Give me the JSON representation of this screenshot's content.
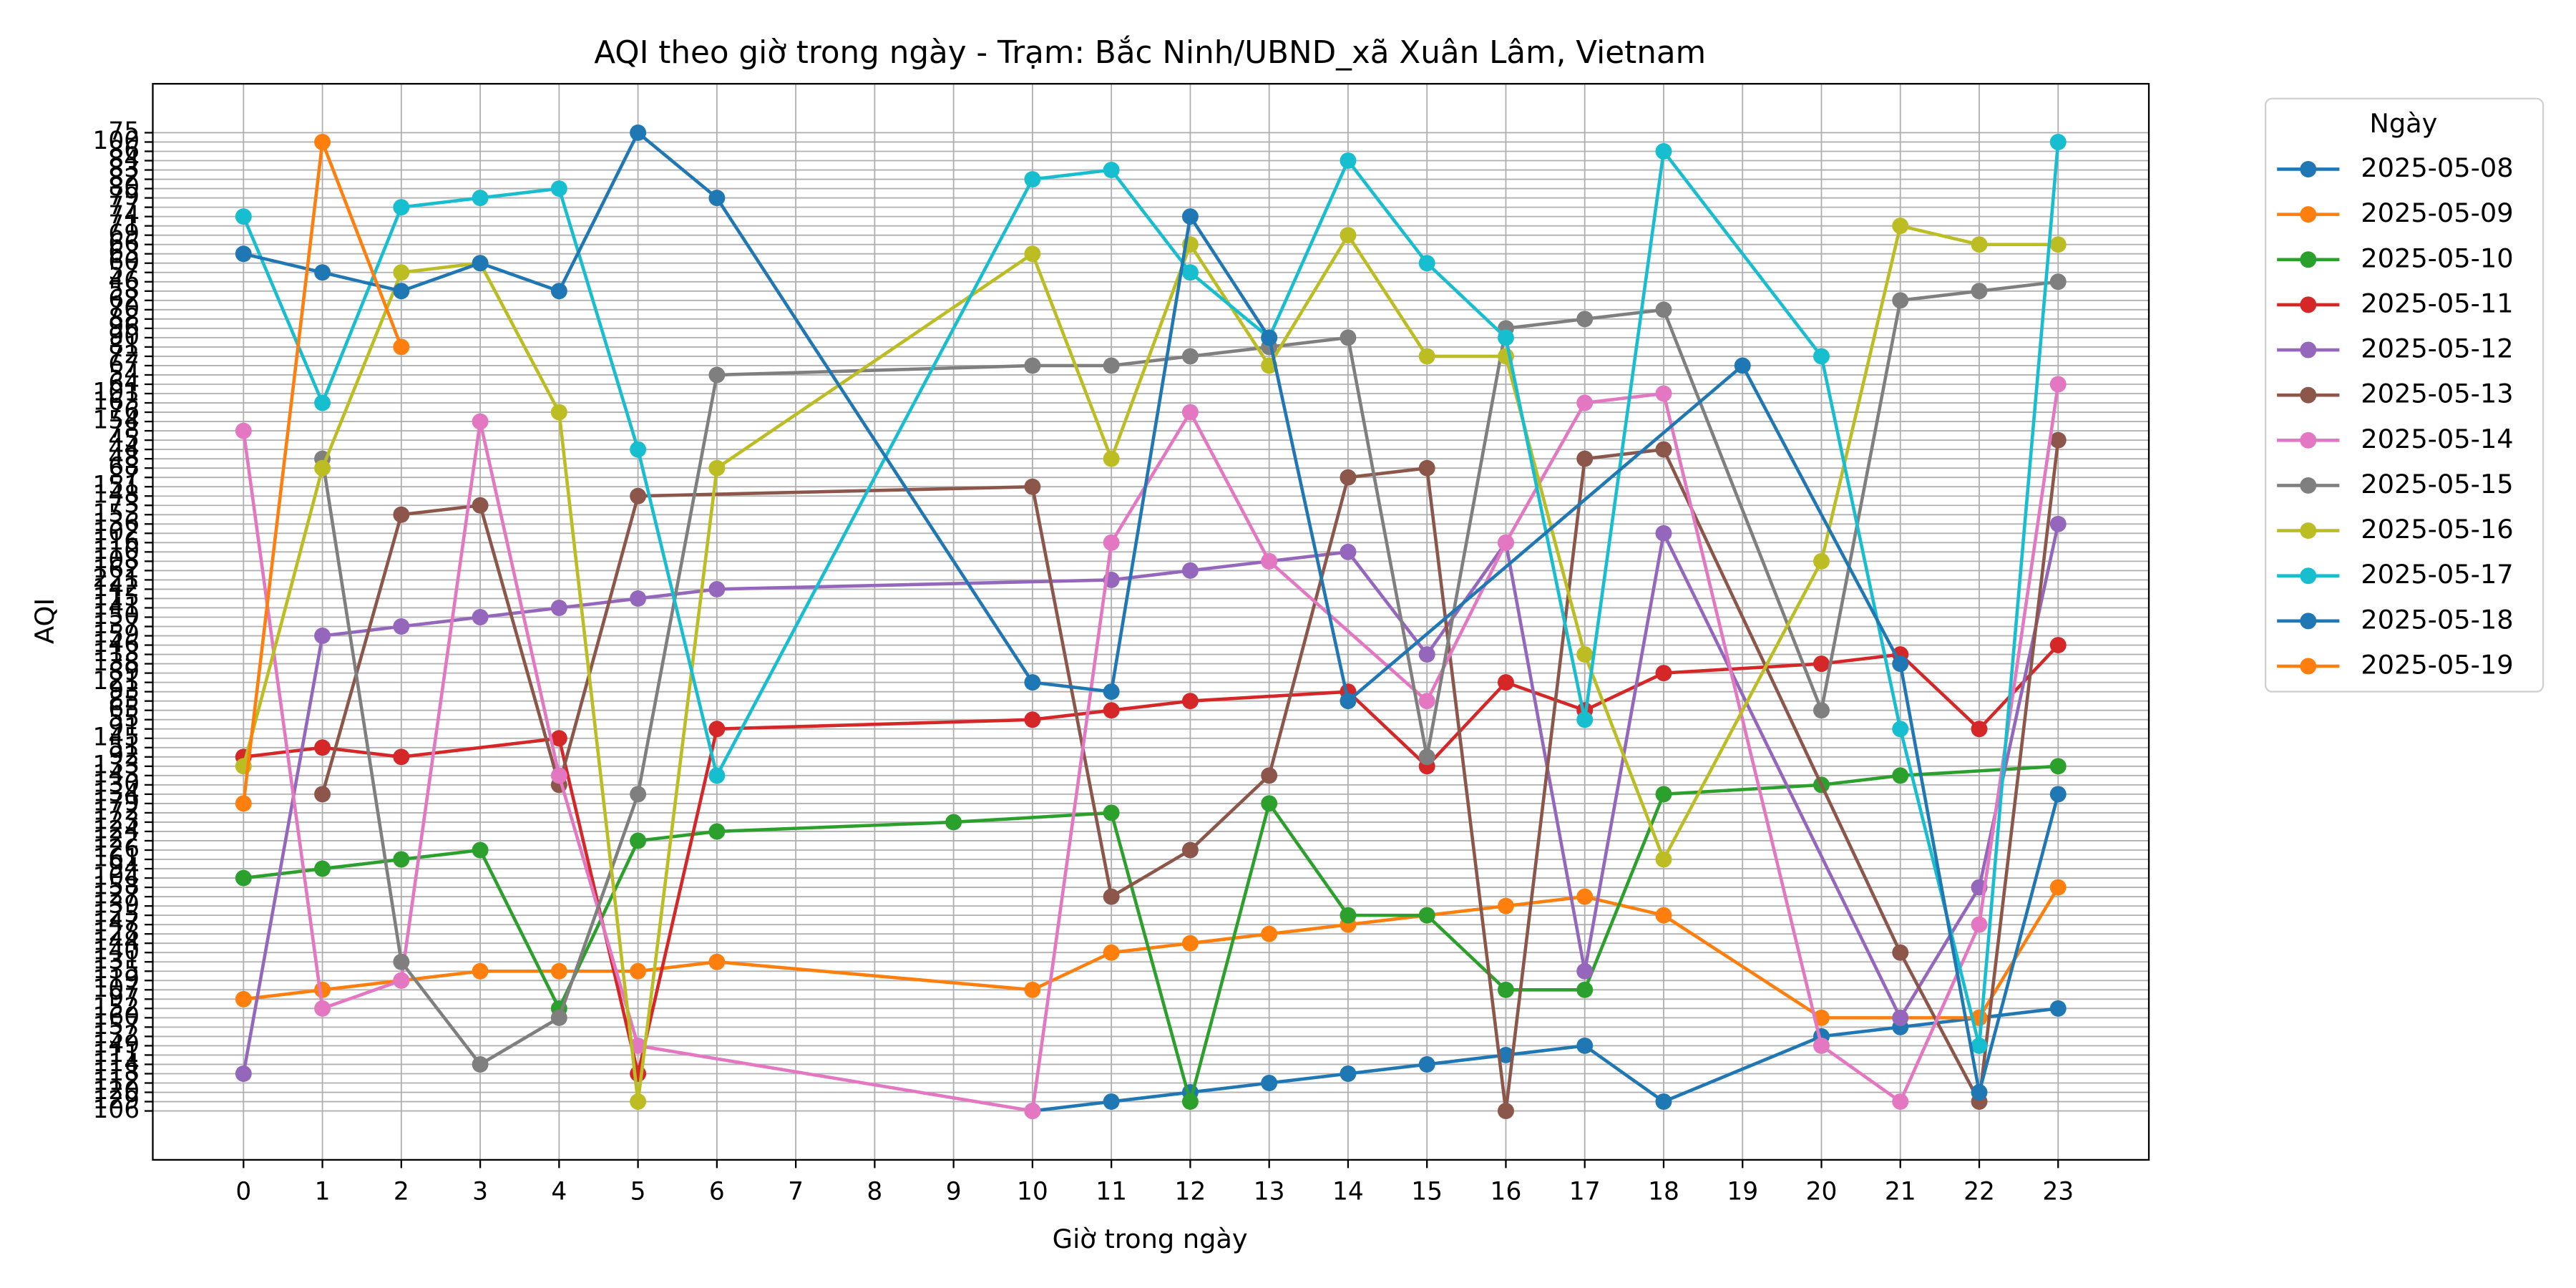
{
  "chart_data": {
    "type": "line",
    "title": "AQI theo giờ trong ngày - Trạm: Bắc Ninh/UBND_xã Xuân Lâm, Vietnam",
    "x_label": "Giờ trong ngày",
    "y_label": "AQI",
    "legend_title": "Ngày",
    "legend": "outside-upper-right",
    "grid": true,
    "xlim": [
      -1.15,
      24.15
    ],
    "xticks": [
      0,
      1,
      2,
      3,
      4,
      5,
      6,
      7,
      8,
      9,
      10,
      11,
      12,
      13,
      14,
      15,
      16,
      17,
      18,
      19,
      20,
      21,
      22,
      23
    ],
    "ylim": [
      -5.25,
      110.25
    ],
    "yticks": [
      {
        "value": 0,
        "label": "106"
      },
      {
        "value": 1,
        "label": "129"
      },
      {
        "value": 2,
        "label": "120"
      },
      {
        "value": 3,
        "label": "112"
      },
      {
        "value": 4,
        "label": "118"
      },
      {
        "value": 5,
        "label": "114"
      },
      {
        "value": 6,
        "label": "111"
      },
      {
        "value": 7,
        "label": "149"
      },
      {
        "value": 8,
        "label": "132"
      },
      {
        "value": 9,
        "label": "157"
      },
      {
        "value": 10,
        "label": "160"
      },
      {
        "value": 11,
        "label": "152"
      },
      {
        "value": 12,
        "label": "97"
      },
      {
        "value": 13,
        "label": "107"
      },
      {
        "value": 14,
        "label": "119"
      },
      {
        "value": 15,
        "label": "135"
      },
      {
        "value": 16,
        "label": "131"
      },
      {
        "value": 17,
        "label": "140"
      },
      {
        "value": 18,
        "label": "144"
      },
      {
        "value": 19,
        "label": "128"
      },
      {
        "value": 20,
        "label": "147"
      },
      {
        "value": 21,
        "label": "125"
      },
      {
        "value": 22,
        "label": "139"
      },
      {
        "value": 23,
        "label": "127"
      },
      {
        "value": 24,
        "label": "158"
      },
      {
        "value": 25,
        "label": "104"
      },
      {
        "value": 26,
        "label": "94"
      },
      {
        "value": 27,
        "label": "161"
      },
      {
        "value": 28,
        "label": "126"
      },
      {
        "value": 29,
        "label": "122"
      },
      {
        "value": 30,
        "label": "124"
      },
      {
        "value": 31,
        "label": "123"
      },
      {
        "value": 32,
        "label": "172"
      },
      {
        "value": 33,
        "label": "179"
      },
      {
        "value": 34,
        "label": "134"
      },
      {
        "value": 35,
        "label": "130"
      },
      {
        "value": 36,
        "label": "143"
      },
      {
        "value": 37,
        "label": "133"
      },
      {
        "value": 38,
        "label": "92"
      },
      {
        "value": 39,
        "label": "51"
      },
      {
        "value": 40,
        "label": "145"
      },
      {
        "value": 41,
        "label": "91"
      },
      {
        "value": 42,
        "label": "55"
      },
      {
        "value": 43,
        "label": "65"
      },
      {
        "value": 44,
        "label": "85"
      },
      {
        "value": 45,
        "label": "93"
      },
      {
        "value": 46,
        "label": "121"
      },
      {
        "value": 47,
        "label": "89"
      },
      {
        "value": 48,
        "label": "138"
      },
      {
        "value": 49,
        "label": "113"
      },
      {
        "value": 50,
        "label": "146"
      },
      {
        "value": 51,
        "label": "159"
      },
      {
        "value": 52,
        "label": "137"
      },
      {
        "value": 53,
        "label": "150"
      },
      {
        "value": 54,
        "label": "141"
      },
      {
        "value": 55,
        "label": "115"
      },
      {
        "value": 56,
        "label": "142"
      },
      {
        "value": 57,
        "label": "221"
      },
      {
        "value": 58,
        "label": "162"
      },
      {
        "value": 59,
        "label": "108"
      },
      {
        "value": 60,
        "label": "110"
      },
      {
        "value": 61,
        "label": "116"
      },
      {
        "value": 62,
        "label": "102"
      },
      {
        "value": 63,
        "label": "136"
      },
      {
        "value": 64,
        "label": "153"
      },
      {
        "value": 65,
        "label": "73"
      },
      {
        "value": 66,
        "label": "148"
      },
      {
        "value": 67,
        "label": "151"
      },
      {
        "value": 68,
        "label": "87"
      },
      {
        "value": 69,
        "label": "68"
      },
      {
        "value": 70,
        "label": "48"
      },
      {
        "value": 71,
        "label": "44"
      },
      {
        "value": 72,
        "label": "45"
      },
      {
        "value": 73,
        "label": "78"
      },
      {
        "value": 74,
        "label": "154"
      },
      {
        "value": 75,
        "label": "76"
      },
      {
        "value": 76,
        "label": "163"
      },
      {
        "value": 77,
        "label": "101"
      },
      {
        "value": 78,
        "label": "64"
      },
      {
        "value": 79,
        "label": "54"
      },
      {
        "value": 80,
        "label": "67"
      },
      {
        "value": 81,
        "label": "72"
      },
      {
        "value": 82,
        "label": "81"
      },
      {
        "value": 83,
        "label": "90"
      },
      {
        "value": 84,
        "label": "96"
      },
      {
        "value": 85,
        "label": "88"
      },
      {
        "value": 86,
        "label": "70"
      },
      {
        "value": 87,
        "label": "62"
      },
      {
        "value": 88,
        "label": "58"
      },
      {
        "value": 89,
        "label": "46"
      },
      {
        "value": 90,
        "label": "57"
      },
      {
        "value": 91,
        "label": "60"
      },
      {
        "value": 92,
        "label": "63"
      },
      {
        "value": 93,
        "label": "66"
      },
      {
        "value": 94,
        "label": "69"
      },
      {
        "value": 95,
        "label": "71"
      },
      {
        "value": 96,
        "label": "74"
      },
      {
        "value": 97,
        "label": "77"
      },
      {
        "value": 98,
        "label": "79"
      },
      {
        "value": 99,
        "label": "80"
      },
      {
        "value": 100,
        "label": "82"
      },
      {
        "value": 101,
        "label": "83"
      },
      {
        "value": 102,
        "label": "84"
      },
      {
        "value": 103,
        "label": "86"
      },
      {
        "value": 104,
        "label": "100"
      },
      {
        "value": 105,
        "label": "75"
      }
    ],
    "series": [
      {
        "name": "2025-05-08",
        "color": "#1f77b4",
        "x": [
          10,
          11,
          12,
          13,
          14,
          15,
          16,
          17,
          18,
          20,
          21,
          22,
          23
        ],
        "values": [
          0,
          1,
          2,
          3,
          4,
          5,
          6,
          7,
          1,
          8,
          9,
          10,
          11
        ]
      },
      {
        "name": "2025-05-09",
        "color": "#ff7f0e",
        "x": [
          0,
          1,
          2,
          3,
          4,
          5,
          6,
          10,
          11,
          12,
          13,
          14,
          15,
          16,
          17,
          18,
          20,
          21,
          22,
          23
        ],
        "values": [
          12,
          13,
          14,
          15,
          15,
          15,
          16,
          13,
          17,
          18,
          19,
          20,
          21,
          22,
          23,
          21,
          10,
          10,
          10,
          24
        ]
      },
      {
        "name": "2025-05-10",
        "color": "#2ca02c",
        "x": [
          0,
          1,
          2,
          3,
          4,
          5,
          6,
          9,
          11,
          12,
          13,
          14,
          15,
          16,
          17,
          18,
          20,
          21,
          23
        ],
        "values": [
          25,
          26,
          27,
          28,
          11,
          29,
          30,
          31,
          32,
          1,
          33,
          21,
          21,
          13,
          13,
          34,
          35,
          36,
          37
        ]
      },
      {
        "name": "2025-05-11",
        "color": "#d62728",
        "x": [
          0,
          1,
          2,
          4,
          5,
          6,
          10,
          11,
          12,
          14,
          15,
          16,
          17,
          18,
          20,
          21,
          22,
          23
        ],
        "values": [
          38,
          39,
          38,
          40,
          4,
          41,
          42,
          43,
          44,
          45,
          37,
          46,
          43,
          47,
          48,
          49,
          41,
          50
        ]
      },
      {
        "name": "2025-05-12",
        "color": "#9467bd",
        "x": [
          0,
          1,
          2,
          3,
          4,
          5,
          6,
          11,
          12,
          13,
          14,
          15,
          16,
          17,
          18,
          21,
          22,
          23
        ],
        "values": [
          4,
          51,
          52,
          53,
          54,
          55,
          56,
          57,
          58,
          59,
          60,
          49,
          61,
          15,
          62,
          10,
          24,
          63
        ]
      },
      {
        "name": "2025-05-13",
        "color": "#8c564b",
        "x": [
          1,
          2,
          3,
          4,
          5,
          10,
          11,
          12,
          13,
          14,
          15,
          16,
          17,
          18,
          21,
          22,
          23
        ],
        "values": [
          34,
          64,
          65,
          35,
          66,
          67,
          23,
          28,
          36,
          68,
          69,
          0,
          70,
          71,
          17,
          1,
          72
        ]
      },
      {
        "name": "2025-05-14",
        "color": "#e377c2",
        "x": [
          0,
          1,
          2,
          3,
          4,
          5,
          10,
          11,
          12,
          13,
          15,
          16,
          17,
          18,
          20,
          21,
          22,
          23
        ],
        "values": [
          73,
          11,
          14,
          74,
          36,
          7,
          0,
          61,
          75,
          59,
          44,
          61,
          76,
          77,
          7,
          1,
          20,
          78
        ]
      },
      {
        "name": "2025-05-15",
        "color": "#7f7f7f",
        "x": [
          1,
          2,
          3,
          4,
          5,
          6,
          10,
          11,
          12,
          13,
          14,
          15,
          16,
          17,
          18,
          20,
          21,
          22,
          23
        ],
        "values": [
          70,
          16,
          5,
          10,
          34,
          79,
          80,
          80,
          81,
          82,
          83,
          38,
          84,
          85,
          86,
          43,
          87,
          88,
          89
        ]
      },
      {
        "name": "2025-05-16",
        "color": "#bcbd22",
        "x": [
          0,
          1,
          2,
          3,
          4,
          5,
          6,
          10,
          11,
          12,
          13,
          14,
          15,
          16,
          17,
          18,
          20,
          21,
          22,
          23
        ],
        "values": [
          37,
          69,
          90,
          91,
          75,
          1,
          69,
          92,
          70,
          93,
          80,
          94,
          81,
          81,
          49,
          27,
          59,
          95,
          93,
          93
        ]
      },
      {
        "name": "2025-05-17",
        "color": "#17becf",
        "x": [
          0,
          1,
          2,
          3,
          4,
          5,
          6,
          10,
          11,
          12,
          13,
          14,
          15,
          16,
          17,
          18,
          20,
          21,
          22,
          23
        ],
        "values": [
          96,
          76,
          97,
          98,
          99,
          71,
          36,
          100,
          101,
          90,
          83,
          102,
          91,
          83,
          42,
          103,
          81,
          41,
          7,
          104
        ]
      },
      {
        "name": "2025-05-18",
        "color": "#1f77b4",
        "x": [
          0,
          1,
          2,
          3,
          4,
          5,
          6,
          10,
          11,
          12,
          13,
          14,
          19,
          21,
          22,
          23
        ],
        "values": [
          92,
          90,
          88,
          91,
          88,
          105,
          98,
          46,
          45,
          96,
          83,
          44,
          80,
          48,
          2,
          34
        ]
      },
      {
        "name": "2025-05-19",
        "color": "#ff7f0e",
        "x": [
          0,
          1,
          2
        ],
        "values": [
          33,
          104,
          82
        ]
      }
    ]
  }
}
